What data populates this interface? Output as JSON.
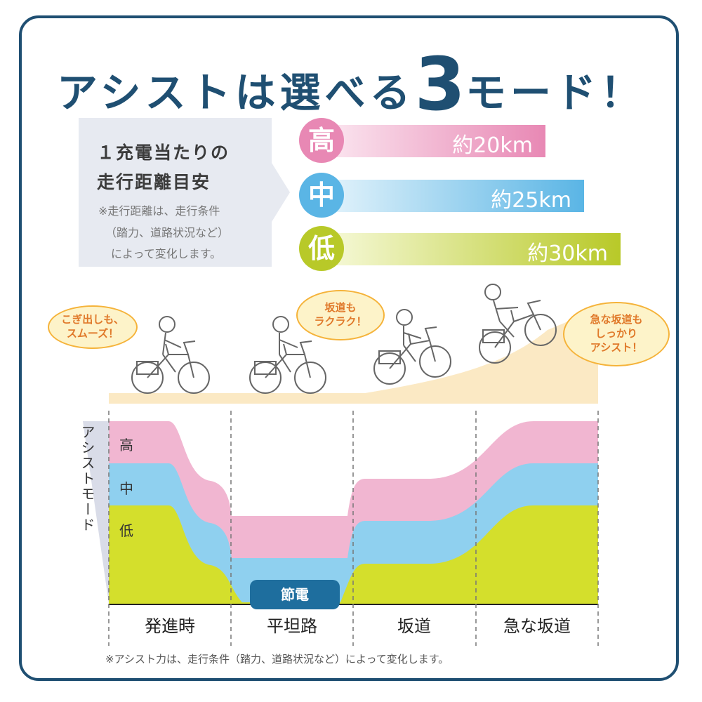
{
  "title": {
    "prefix": "アシストは選べる",
    "number": "3",
    "suffix": "モード！"
  },
  "info": {
    "heading_line1": "１充電当たりの",
    "heading_line2": "走行距離目安",
    "note_line1": "※走行距離は、走行条件",
    "note_line2": "（踏力、道路状況など）",
    "note_line3": "によって変化します。"
  },
  "modes": [
    {
      "name": "高",
      "range": "約20km",
      "color": "#e888b4",
      "fade": "#f7d3e3",
      "level": 0.3
    },
    {
      "name": "中",
      "range": "約25km",
      "color": "#5ab5e5",
      "fade": "#cbe7f6",
      "level": 0.41
    },
    {
      "name": "低",
      "range": "約30km",
      "color": "#b8c928",
      "fade": "#eef2b8",
      "level": 0.5
    }
  ],
  "bubbles": {
    "start": [
      "こぎ出しも、",
      "スムーズ！"
    ],
    "slope": [
      "坂道も",
      "ラクラク！"
    ],
    "steep": [
      "急な坂道も",
      "しっかり",
      "アシスト！"
    ]
  },
  "diagram": {
    "axis_title": "アシストモード",
    "level_high": "高",
    "level_mid": "中",
    "level_low": "低",
    "save_label": "節電",
    "categories": [
      "発進時",
      "平坦路",
      "坂道",
      "急な坂道"
    ]
  },
  "footnote": "※アシスト力は、走行条件（踏力、道路状況など）によって変化します。",
  "colors": {
    "frame": "#1f4f72",
    "pink": "#f1b6d1",
    "blue": "#8fd0ef",
    "green": "#d4df2c",
    "badge": "#1e6e9e",
    "ground": "#fbe9c4"
  }
}
